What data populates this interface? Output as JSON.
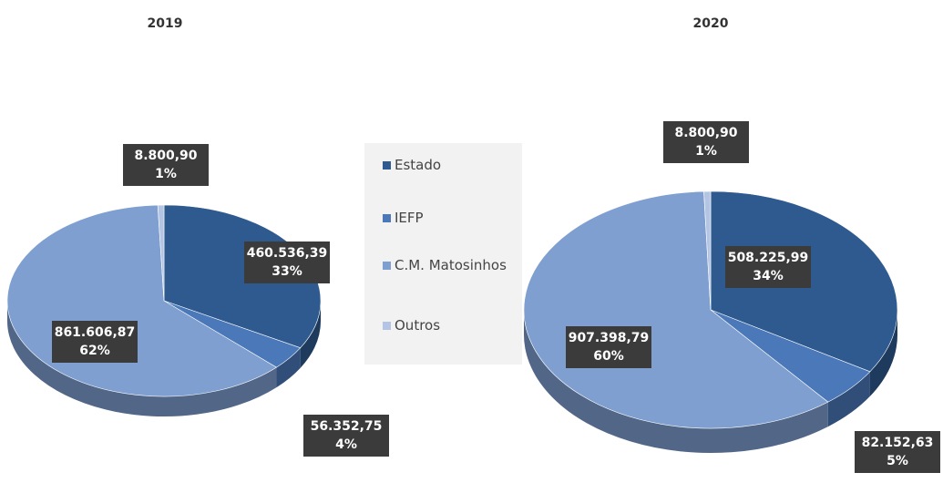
{
  "chart_data": [
    {
      "type": "pie3d",
      "title": "2019",
      "categories": [
        "Estado",
        "IEFP",
        "C.M. Matosinhos",
        "Outros"
      ],
      "colors": [
        "#2f5a8f",
        "#4a78b8",
        "#7e9fd0",
        "#b4c5e4"
      ],
      "values": [
        460536.39,
        56352.75,
        861606.87,
        8800.9
      ],
      "value_labels": [
        "460.536,39",
        "56.352,75",
        "861.606,87",
        "8.800,90"
      ],
      "percentages": [
        33,
        4,
        62,
        1
      ],
      "percentage_labels": [
        "33%",
        "4%",
        "62%",
        "1%"
      ]
    },
    {
      "type": "pie3d",
      "title": "2020",
      "categories": [
        "Estado",
        "IEFP",
        "C.M. Matosinhos",
        "Outros"
      ],
      "colors": [
        "#2f5a8f",
        "#4a78b8",
        "#7e9fd0",
        "#b4c5e4"
      ],
      "values": [
        508225.99,
        82152.63,
        907398.79,
        8800.9
      ],
      "value_labels": [
        "508.225,99",
        "82.152,63",
        "907.398,79",
        "8.800,90"
      ],
      "percentages": [
        34,
        5,
        60,
        1
      ],
      "percentage_labels": [
        "34%",
        "5%",
        "60%",
        "1%"
      ]
    }
  ]
}
